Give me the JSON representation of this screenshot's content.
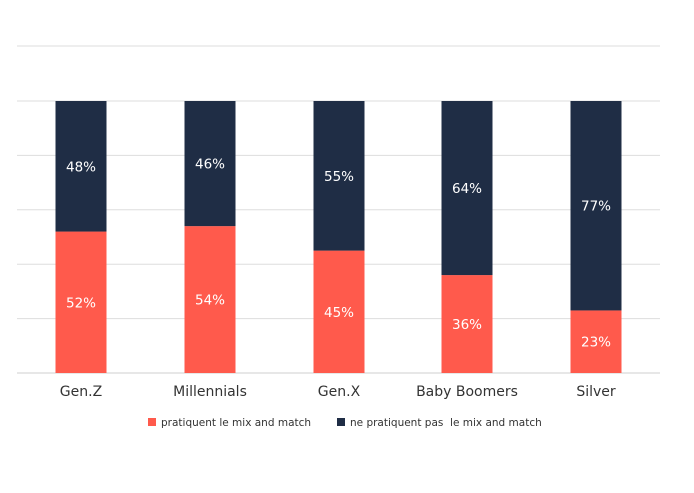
{
  "chart_data": {
    "type": "bar",
    "stacked": true,
    "categories": [
      "Gen.Z",
      "Millennials",
      "Gen.X",
      "Baby Boomers",
      "Silver"
    ],
    "series": [
      {
        "name": "pratiquent le mix and match",
        "color": "#FF5A4C",
        "values": [
          52,
          54,
          45,
          36,
          23
        ],
        "labels": [
          "52%",
          "54%",
          "45%",
          "36%",
          "23%"
        ]
      },
      {
        "name": "ne pratiquent pas  le mix and match",
        "color": "#1F2D45",
        "values": [
          48,
          46,
          55,
          64,
          77
        ],
        "labels": [
          "48%",
          "46%",
          "55%",
          "64%",
          "77%"
        ]
      }
    ],
    "ylim": [
      0,
      100
    ],
    "grid": true,
    "legend": "bottom"
  }
}
